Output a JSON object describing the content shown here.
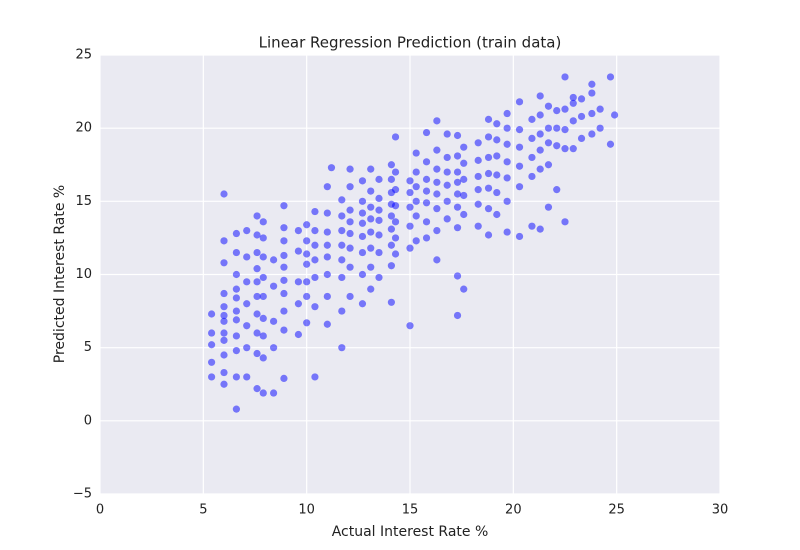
{
  "chart_data": {
    "type": "scatter",
    "title": "Linear Regression Prediction (train data)",
    "xlabel": "Actual Interest Rate %",
    "ylabel": "Predicted Interest Rate %",
    "color": "#0000ff",
    "grid": true,
    "xlim": [
      0,
      30
    ],
    "ylim": [
      -5,
      25
    ],
    "xticks": [
      0,
      5,
      10,
      15,
      20,
      25,
      30
    ],
    "yticks": [
      {
        "value": -5,
        "label": "−5"
      },
      0,
      5,
      10,
      15,
      20,
      25
    ],
    "x": [
      5.4,
      5.4,
      5.4,
      5.4,
      5.4,
      6.0,
      6.0,
      6.0,
      6.0,
      6.0,
      6.0,
      6.0,
      6.0,
      6.0,
      6.0,
      6.0,
      6.0,
      6.6,
      6.6,
      6.6,
      6.6,
      6.6,
      6.6,
      6.6,
      6.6,
      6.6,
      6.6,
      6.6,
      7.1,
      7.1,
      7.1,
      7.1,
      7.1,
      7.1,
      7.1,
      7.6,
      7.6,
      7.6,
      7.6,
      7.6,
      7.6,
      7.6,
      7.6,
      7.6,
      7.6,
      7.9,
      7.9,
      7.9,
      7.9,
      7.9,
      7.9,
      7.9,
      7.9,
      7.9,
      8.4,
      8.4,
      8.4,
      8.4,
      8.4,
      8.9,
      8.9,
      8.9,
      8.9,
      8.9,
      8.9,
      8.9,
      8.9,
      8.9,
      8.9,
      9.6,
      9.6,
      9.6,
      9.6,
      9.6,
      10.0,
      10.0,
      10.0,
      10.0,
      10.0,
      10.0,
      10.0,
      10.4,
      10.4,
      10.4,
      10.4,
      10.4,
      10.4,
      10.4,
      11.0,
      11.0,
      11.0,
      11.0,
      11.0,
      11.0,
      11.0,
      11.0,
      11.2,
      11.7,
      11.7,
      11.7,
      11.7,
      11.7,
      11.7,
      11.7,
      11.7,
      12.1,
      12.1,
      12.1,
      12.1,
      12.1,
      12.1,
      12.1,
      12.1,
      12.7,
      12.7,
      12.7,
      12.7,
      12.7,
      12.7,
      12.7,
      12.7,
      13.1,
      13.1,
      13.1,
      13.1,
      13.1,
      13.1,
      13.1,
      13.1,
      13.5,
      13.5,
      13.5,
      13.5,
      13.5,
      13.5,
      13.5,
      14.1,
      14.1,
      14.1,
      14.1,
      14.1,
      14.1,
      14.1,
      14.1,
      14.1,
      14.3,
      14.3,
      14.3,
      14.3,
      14.3,
      14.3,
      14.3,
      15.0,
      15.0,
      15.0,
      15.0,
      15.0,
      15.0,
      15.3,
      15.3,
      15.3,
      15.3,
      15.3,
      15.3,
      15.8,
      15.8,
      15.8,
      15.8,
      15.8,
      15.8,
      15.8,
      16.3,
      16.3,
      16.3,
      16.3,
      16.3,
      16.3,
      16.3,
      16.3,
      16.8,
      16.8,
      16.8,
      16.8,
      16.8,
      16.8,
      17.3,
      17.3,
      17.3,
      17.3,
      17.3,
      17.3,
      17.3,
      17.3,
      17.3,
      17.6,
      17.6,
      17.6,
      17.6,
      17.6,
      17.6,
      18.3,
      18.3,
      18.3,
      18.3,
      18.3,
      18.3,
      18.8,
      18.8,
      18.8,
      18.8,
      18.8,
      18.8,
      18.8,
      19.2,
      19.2,
      19.2,
      19.2,
      19.2,
      19.2,
      19.7,
      19.7,
      19.7,
      19.7,
      19.7,
      19.7,
      19.7,
      20.3,
      20.3,
      20.3,
      20.3,
      20.3,
      20.3,
      20.9,
      20.9,
      20.9,
      20.9,
      20.9,
      21.3,
      21.3,
      21.3,
      21.3,
      21.3,
      21.3,
      21.7,
      21.7,
      21.7,
      21.7,
      21.7,
      22.1,
      22.1,
      22.1,
      22.1,
      22.5,
      22.5,
      22.5,
      22.5,
      22.5,
      22.9,
      22.9,
      22.9,
      22.9,
      23.3,
      23.3,
      23.3,
      23.8,
      23.8,
      23.8,
      23.8,
      24.2,
      24.2,
      24.7,
      24.7,
      24.9
    ],
    "values": [
      3.0,
      4.0,
      5.2,
      6.0,
      7.3,
      2.5,
      3.3,
      4.5,
      5.5,
      6.0,
      6.8,
      7.2,
      7.8,
      8.7,
      10.8,
      12.3,
      15.5,
      0.8,
      3.0,
      4.8,
      5.8,
      6.9,
      7.5,
      8.4,
      9.0,
      10.0,
      11.5,
      12.8,
      3.0,
      5.0,
      6.5,
      8.0,
      9.5,
      11.2,
      13.0,
      2.2,
      4.6,
      6.0,
      7.3,
      8.5,
      9.5,
      10.4,
      11.5,
      12.7,
      14.0,
      1.9,
      4.3,
      5.8,
      7.0,
      8.5,
      9.8,
      11.2,
      12.5,
      13.6,
      1.9,
      5.0,
      6.8,
      9.2,
      11.0,
      2.9,
      6.2,
      7.5,
      8.7,
      9.6,
      10.5,
      11.3,
      12.3,
      13.2,
      14.7,
      5.9,
      8.0,
      9.5,
      11.6,
      13.0,
      6.7,
      8.5,
      9.5,
      10.7,
      11.4,
      12.3,
      13.4,
      3.0,
      7.8,
      9.8,
      11.0,
      12.0,
      13.0,
      14.3,
      6.6,
      8.5,
      10.0,
      11.2,
      12.0,
      12.9,
      14.2,
      16.0,
      17.3,
      5.0,
      7.5,
      9.8,
      11.0,
      12.0,
      13.0,
      14.0,
      15.1,
      8.5,
      10.5,
      11.8,
      12.8,
      13.6,
      14.4,
      16.0,
      17.2,
      8.0,
      10.0,
      11.5,
      12.6,
      13.5,
      14.2,
      15.0,
      16.4,
      9.0,
      10.5,
      11.8,
      12.9,
      13.8,
      14.6,
      15.7,
      17.2,
      9.8,
      11.5,
      12.7,
      13.7,
      14.4,
      15.2,
      16.5,
      8.1,
      10.6,
      12.0,
      13.1,
      14.0,
      14.8,
      15.6,
      16.5,
      17.5,
      11.4,
      12.5,
      13.6,
      14.7,
      15.8,
      17.0,
      19.4,
      6.5,
      11.8,
      13.3,
      14.6,
      15.6,
      16.4,
      12.3,
      14.0,
      15.0,
      16.0,
      17.0,
      18.3,
      12.5,
      13.6,
      14.9,
      15.7,
      16.5,
      17.7,
      19.7,
      11.0,
      13.0,
      14.5,
      15.5,
      16.3,
      17.2,
      18.5,
      20.5,
      13.8,
      15.0,
      16.1,
      17.0,
      18.0,
      19.6,
      7.2,
      9.9,
      13.2,
      14.6,
      15.5,
      16.3,
      17.0,
      18.1,
      19.5,
      9.0,
      14.1,
      15.4,
      16.5,
      17.6,
      18.7,
      13.3,
      14.8,
      15.8,
      16.7,
      17.8,
      19.0,
      12.7,
      14.5,
      15.9,
      16.9,
      18.0,
      19.4,
      20.6,
      14.1,
      15.6,
      16.8,
      18.1,
      19.2,
      20.3,
      12.9,
      15.0,
      16.6,
      17.7,
      18.9,
      20.0,
      21.0,
      12.6,
      16.0,
      17.4,
      18.7,
      19.9,
      21.8,
      13.3,
      16.7,
      18.0,
      19.3,
      20.6,
      13.1,
      17.2,
      18.5,
      19.6,
      20.9,
      22.2,
      14.6,
      17.5,
      19.0,
      20.0,
      21.5,
      15.8,
      18.8,
      20.0,
      21.2,
      13.6,
      18.6,
      19.9,
      21.3,
      23.5,
      18.6,
      20.5,
      21.7,
      22.1,
      19.3,
      20.8,
      22.0,
      19.6,
      21.0,
      22.4,
      23.0,
      20.0,
      21.3,
      18.9,
      23.5,
      20.9
    ]
  }
}
